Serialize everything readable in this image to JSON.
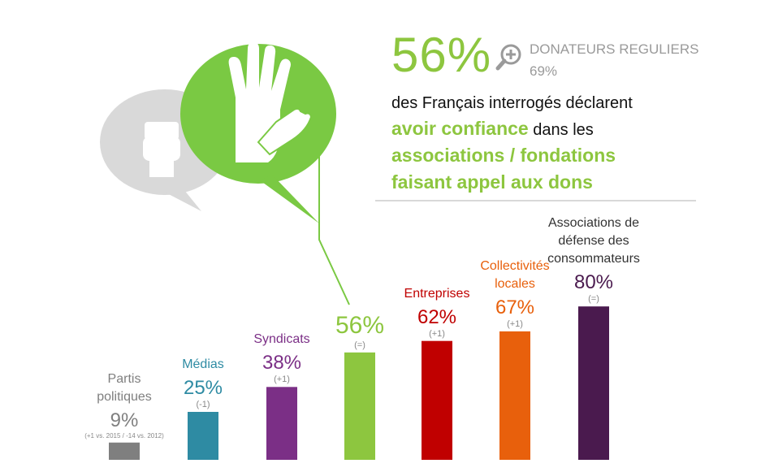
{
  "headline": {
    "value": "56%",
    "donors_label": "DONATEURS REGULIERS",
    "donors_value": "69%",
    "line1": "des Français interrogés déclarent",
    "line2_highlight": "avoir confiance",
    "line2_rest": " dans les",
    "line3": "associations / fondations",
    "line4": "faisant appel aux dons"
  },
  "icons": [
    "fist-icon",
    "raised-hands-icon",
    "magnifier-plus-icon"
  ],
  "chart_data": {
    "type": "bar",
    "categories": [
      "Partis politiques",
      "Médias",
      "Syndicats",
      "",
      "Entreprises",
      "Collectivités locales",
      "Associations de défense des consommateurs"
    ],
    "values": [
      9,
      25,
      38,
      56,
      62,
      67,
      80
    ],
    "value_labels": [
      "9%",
      "25%",
      "38%",
      "56%",
      "62%",
      "67%",
      "80%"
    ],
    "changes": [
      "(+1 vs. 2015 / -14 vs. 2012)",
      "(-1)",
      "(+1)",
      "(=)",
      "(+1)",
      "(+1)",
      "(=)"
    ],
    "colors": [
      "#7f7f7f",
      "#2e8ba3",
      "#7b2f86",
      "#8dc63f",
      "#c00000",
      "#e8600c",
      "#4a1a4e"
    ],
    "label_lines": [
      [
        "Partis",
        "politiques"
      ],
      [
        "Médias"
      ],
      [
        "Syndicats"
      ],
      [],
      [
        "Entreprises"
      ],
      [
        "Collectivités",
        "locales"
      ],
      [
        "Associations de",
        "défense des",
        "consommateurs"
      ]
    ]
  }
}
